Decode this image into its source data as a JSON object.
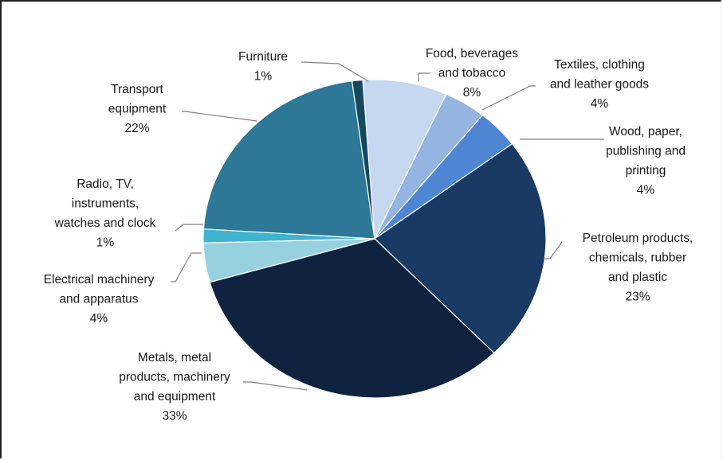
{
  "chart_data": {
    "type": "pie",
    "title": "",
    "start_angle_deg": -4,
    "slices": [
      {
        "label": [
          "Food, beverages",
          "and tobacco"
        ],
        "percent_text": "8%",
        "value": 8,
        "color": "#c6d8ef"
      },
      {
        "label": [
          "Textiles, clothing",
          "and leather goods"
        ],
        "percent_text": "4%",
        "value": 4,
        "color": "#93b5e0"
      },
      {
        "label": [
          "Wood, paper,",
          "publishing and",
          "printing"
        ],
        "percent_text": "4%",
        "value": 4,
        "color": "#4e86d4"
      },
      {
        "label": [
          "Petroleum products,",
          "chemicals, rubber",
          "and plastic"
        ],
        "percent_text": "23%",
        "value": 23,
        "color": "#183a63"
      },
      {
        "label": [
          "Metals, metal",
          "products, machinery",
          "and equipment"
        ],
        "percent_text": "33%",
        "value": 33,
        "color": "#0f2340"
      },
      {
        "label": [
          "Electrical machinery",
          "and apparatus"
        ],
        "percent_text": "4%",
        "value": 4,
        "color": "#97d0df"
      },
      {
        "label": [
          "Radio, TV,",
          "instruments,",
          "watches and clock"
        ],
        "percent_text": "1%",
        "value": 1.4,
        "color": "#40b3cf"
      },
      {
        "label": [
          "Transport",
          "equipment"
        ],
        "percent_text": "22%",
        "value": 22,
        "color": "#2c7896"
      },
      {
        "label": [
          "Furniture"
        ],
        "percent_text": "1%",
        "value": 1,
        "color": "#15495f"
      }
    ]
  }
}
